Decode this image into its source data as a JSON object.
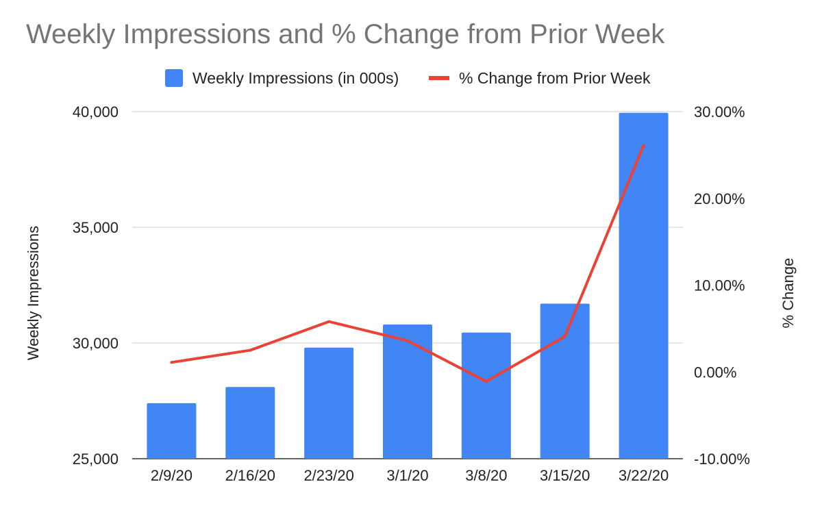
{
  "chart_data": {
    "type": "bar",
    "title": "Weekly Impressions and % Change from Prior Week",
    "categories": [
      "2/9/20",
      "2/16/20",
      "2/23/20",
      "3/1/20",
      "3/8/20",
      "3/15/20",
      "3/22/20"
    ],
    "series": [
      {
        "name": "Weekly Impressions (in 000s)",
        "type": "bar",
        "axis": "left",
        "color": "#4285f4",
        "values": [
          27400,
          28100,
          29800,
          30800,
          30450,
          31700,
          39950
        ]
      },
      {
        "name": "% Change from Prior Week",
        "type": "line",
        "axis": "right",
        "color": "#ea4335",
        "values": [
          1.1,
          2.5,
          5.8,
          3.6,
          -1.1,
          4.1,
          26.1
        ]
      }
    ],
    "ylabel": "Weekly Impressions",
    "ylim": [
      25000,
      40000
    ],
    "yticks": [
      "40,000",
      "35,000",
      "30,000",
      "25,000"
    ],
    "y2label": "% Change",
    "y2lim": [
      -10,
      30
    ],
    "y2ticks": [
      "30.00%",
      "20.00%",
      "10.00%",
      "0.00%",
      "-10.00%"
    ],
    "grid": true,
    "legend_position": "top"
  }
}
